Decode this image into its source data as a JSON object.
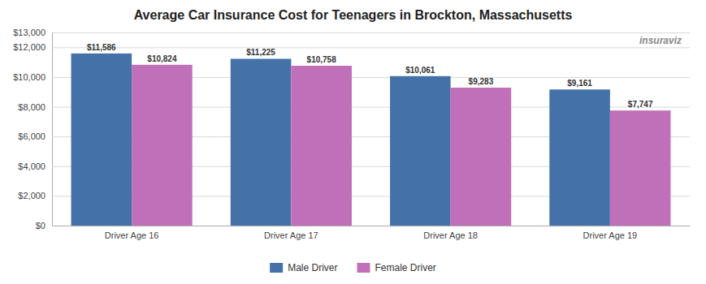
{
  "chart_data": {
    "type": "bar",
    "title": "Average Car Insurance Cost for Teenagers in Brockton, Massachusetts",
    "categories": [
      "Driver Age 16",
      "Driver Age 17",
      "Driver Age 18",
      "Driver Age 19"
    ],
    "series": [
      {
        "name": "Male Driver",
        "color": "#4472a8",
        "values": [
          11586,
          11225,
          10061,
          9161
        ],
        "value_labels": [
          "$11,586",
          "$11,225",
          "$10,061",
          "$9,161"
        ]
      },
      {
        "name": "Female Driver",
        "color": "#c070b8",
        "values": [
          10824,
          10758,
          9283,
          7747
        ],
        "value_labels": [
          "$10,824",
          "$10,758",
          "$9,283",
          "$7,747"
        ]
      }
    ],
    "ylim": [
      0,
      13000
    ],
    "yticks": [
      {
        "value": 0,
        "label": "$0"
      },
      {
        "value": 2000,
        "label": "$2,000"
      },
      {
        "value": 4000,
        "label": "$4,000"
      },
      {
        "value": 6000,
        "label": "$6,000"
      },
      {
        "value": 8000,
        "label": "$8,000"
      },
      {
        "value": 10000,
        "label": "$10,000"
      },
      {
        "value": 12000,
        "label": "$12,000"
      },
      {
        "value": 13000,
        "label": "$13,000"
      }
    ],
    "grid": true,
    "legend": "bottom",
    "data_labels": true,
    "annotations": [
      {
        "text": "insuraviz"
      }
    ]
  }
}
